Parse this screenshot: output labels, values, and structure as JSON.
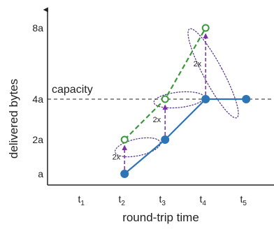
{
  "chart_data": {
    "type": "line",
    "xlabel": "round-trip time",
    "ylabel": "delivered bytes",
    "x_ticks": [
      {
        "base": "t",
        "sub": "1"
      },
      {
        "base": "t",
        "sub": "2"
      },
      {
        "base": "t",
        "sub": "3"
      },
      {
        "base": "t",
        "sub": "4"
      },
      {
        "base": "t",
        "sub": "5"
      }
    ],
    "y_ticks": [
      "a",
      "2a",
      "4a",
      "8a"
    ],
    "y_tick_values": [
      1,
      2,
      4,
      8
    ],
    "capacity": {
      "label": "capacity",
      "value": 4
    },
    "series": [
      {
        "style": "solid",
        "color": "#2e75b6",
        "marker": "filled-circle",
        "points": [
          {
            "x": 2,
            "y": 1
          },
          {
            "x": 3,
            "y": 2
          },
          {
            "x": 4,
            "y": 4
          },
          {
            "x": 5,
            "y": 4
          }
        ]
      },
      {
        "style": "dashed",
        "color": "#3a9a3a",
        "marker": "open-circle",
        "points": [
          {
            "x": 2,
            "y": 2
          },
          {
            "x": 3,
            "y": 4
          },
          {
            "x": 4,
            "y": 8
          }
        ]
      }
    ],
    "doubling_arrows": [
      {
        "x": 2,
        "from": 1,
        "to": 2,
        "label": "2x"
      },
      {
        "x": 3,
        "from": 2,
        "to": 4,
        "label": "2x"
      },
      {
        "x": 4,
        "from": 4,
        "to": 8,
        "label": "2x"
      }
    ],
    "arrow_color": "#7b2fa3",
    "ellipse_color": "#5a3b8c"
  }
}
